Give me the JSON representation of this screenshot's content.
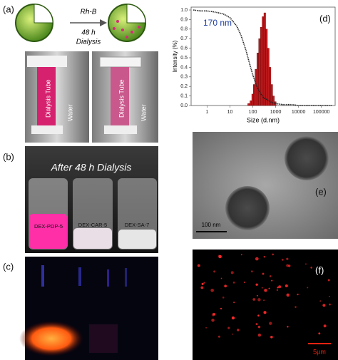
{
  "panels": {
    "a": {
      "label": "(a)",
      "reagent": "Rh-B",
      "time": "48 h",
      "process": "Dialysis",
      "photo_left": {
        "tube": "Dialysis Tube",
        "medium": "Water"
      },
      "photo_right": {
        "tube": "Dialysis Tube",
        "medium": "Water"
      }
    },
    "b": {
      "label": "(b)",
      "caption": "After 48 h Dialysis",
      "samples": [
        "DEX-PDP-5",
        "DEX-CAR-5",
        "DEX-SA-7"
      ]
    },
    "c": {
      "label": "(c)"
    },
    "d": {
      "label": "(d)",
      "annotation": "170 nm"
    },
    "e": {
      "label": "(e)",
      "scale": "100 nm"
    },
    "f": {
      "label": "(f)",
      "scale": "5μm"
    }
  },
  "chart_data": {
    "type": "histogram",
    "x_label": "Size (d.nm)",
    "y_label": "Intensity (%)",
    "bins": [
      60,
      75,
      90,
      105,
      125,
      150,
      180,
      215,
      255,
      305,
      365,
      435,
      520,
      620,
      740,
      880,
      1050
    ],
    "values": [
      0.02,
      0.05,
      0.12,
      0.22,
      0.38,
      0.55,
      0.7,
      0.82,
      0.93,
      0.97,
      0.8,
      0.6,
      0.4,
      0.22,
      0.1,
      0.04
    ],
    "color": "#c0191c",
    "line": {
      "color": "#222222",
      "x": [
        0.25,
        0.5,
        1,
        2,
        5,
        10,
        20,
        30,
        50,
        70,
        100,
        150,
        200,
        300,
        500,
        700,
        1000,
        2000,
        5000,
        10000,
        30000,
        100000,
        300000
      ],
      "values": [
        1.0,
        0.99,
        0.99,
        0.98,
        0.96,
        0.92,
        0.83,
        0.74,
        0.58,
        0.45,
        0.32,
        0.2,
        0.14,
        0.08,
        0.05,
        0.03,
        0.02,
        0.01,
        0.01,
        0.0,
        0.0,
        0.0,
        0.0
      ]
    },
    "xlog": true,
    "xlim": [
      0.2,
      400000
    ],
    "ylim": [
      0,
      1.03
    ],
    "xticks": [
      1,
      10,
      100,
      1000,
      10000,
      100000
    ],
    "yticks": [
      {
        "value": 0,
        "label": "0.0"
      },
      {
        "value": 0.1,
        "label": "0.1"
      },
      {
        "value": 0.2,
        "label": "0.2"
      },
      {
        "value": 0.3,
        "label": "0.3"
      },
      {
        "value": 0.4,
        "label": "0.4"
      },
      {
        "value": 0.5,
        "label": "0.5"
      },
      {
        "value": 0.6,
        "label": "0.6"
      },
      {
        "value": 0.7,
        "label": "0.7"
      },
      {
        "value": 0.8,
        "label": "0.8"
      },
      {
        "value": 0.9,
        "label": "0.9"
      },
      {
        "value": 1.0,
        "label": "1.0"
      }
    ]
  }
}
